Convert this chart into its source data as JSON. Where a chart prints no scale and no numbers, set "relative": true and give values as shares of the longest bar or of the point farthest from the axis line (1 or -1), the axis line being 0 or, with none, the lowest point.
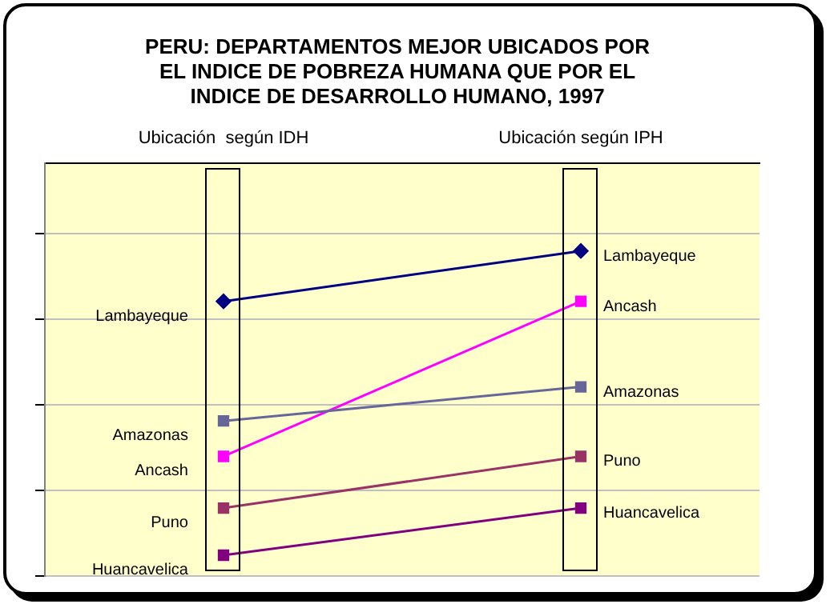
{
  "chart_data": {
    "type": "line",
    "title": "PERU: DEPARTAMENTOS MEJOR UBICADOS POR\nEL INDICE DE POBREZA HUMANA QUE POR EL\nINDICE DE DESARROLLO HUMANO, 1997",
    "categories": [
      "Ubicación  según IDH",
      "Ubicación según IPH"
    ],
    "relative": true,
    "grid": "y",
    "legend": false,
    "series": [
      {
        "name": "Lambayeque",
        "color": "#000080",
        "marker": "diamond",
        "values": [
          0.845,
          1
        ]
      },
      {
        "name": "Amazonas",
        "color": "#666699",
        "marker": "square",
        "values": [
          0.477,
          0.582
        ]
      },
      {
        "name": "Ancash",
        "color": "#ff00ff",
        "marker": "square",
        "values": [
          0.368,
          0.845
        ]
      },
      {
        "name": "Puno",
        "color": "#993366",
        "marker": "square",
        "values": [
          0.209,
          0.368
        ]
      },
      {
        "name": "Huancavelica",
        "color": "#800080",
        "marker": "square",
        "values": [
          0.064,
          0.209
        ]
      }
    ]
  }
}
